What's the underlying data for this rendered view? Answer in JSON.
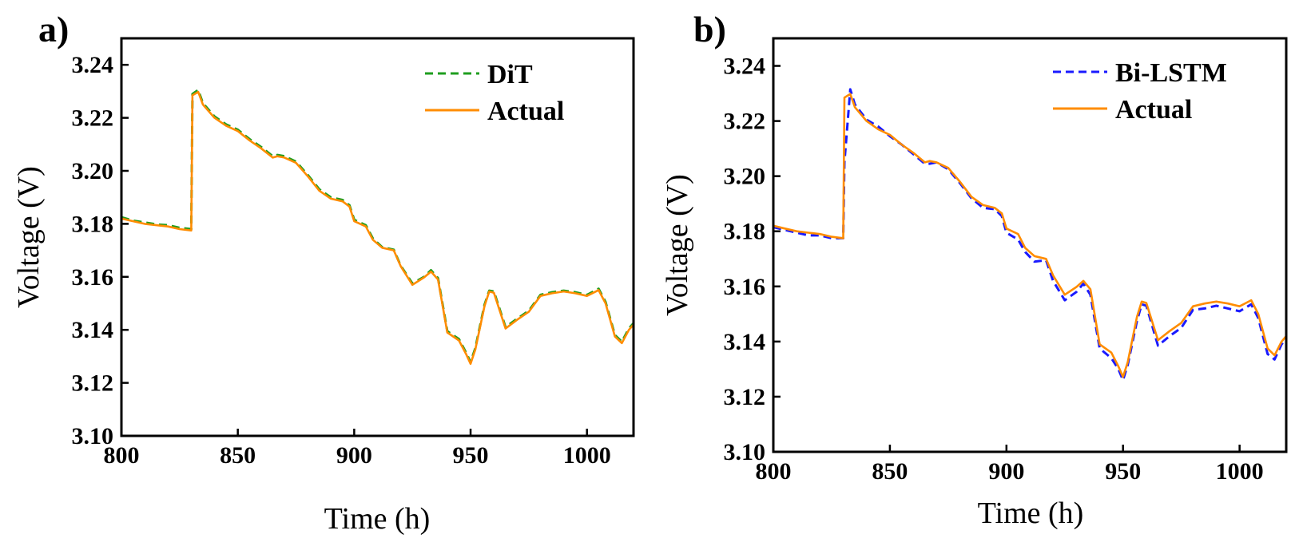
{
  "chart_data": [
    {
      "type": "line",
      "panel_label": "a)",
      "xlabel": "Time (h)",
      "ylabel": "Voltage (V)",
      "xlim": [
        800,
        1020
      ],
      "ylim": [
        3.1,
        3.25
      ],
      "xticks": [
        "800",
        "850",
        "900",
        "950",
        "1000"
      ],
      "yticks": [
        "3.10",
        "3.12",
        "3.14",
        "3.16",
        "3.18",
        "3.20",
        "3.22",
        "3.24"
      ],
      "legend_position": "top-right",
      "series": [
        {
          "name": "DiT",
          "color": "#1f9e1f",
          "style": "dashed",
          "x": [
            800,
            805,
            810,
            815,
            820,
            825,
            830,
            830.5,
            833,
            835,
            840,
            845,
            850,
            855,
            860,
            865,
            867,
            870,
            875,
            880,
            885,
            890,
            895,
            898,
            900,
            905,
            908,
            912,
            917,
            920,
            925,
            930,
            933,
            936,
            940,
            945,
            948,
            950,
            952,
            956,
            958,
            960,
            965,
            970,
            975,
            980,
            985,
            990,
            995,
            1000,
            1005,
            1008,
            1012,
            1015,
            1018,
            1020
          ],
          "y": [
            3.1825,
            3.1812,
            3.1805,
            3.1798,
            3.1795,
            3.1785,
            3.178,
            3.229,
            3.2305,
            3.2255,
            3.2205,
            3.2175,
            3.2155,
            3.212,
            3.209,
            3.2055,
            3.206,
            3.2055,
            3.2035,
            3.1985,
            3.193,
            3.19,
            3.189,
            3.187,
            3.1815,
            3.1795,
            3.1745,
            3.1712,
            3.1702,
            3.1642,
            3.1575,
            3.16,
            3.1625,
            3.1595,
            3.1395,
            3.1365,
            3.1315,
            3.1278,
            3.133,
            3.1495,
            3.1548,
            3.1545,
            3.141,
            3.1442,
            3.1472,
            3.1532,
            3.1542,
            3.1548,
            3.1542,
            3.1532,
            3.1555,
            3.1505,
            3.138,
            3.1355,
            3.1405,
            3.1425
          ]
        },
        {
          "name": "Actual",
          "color": "#ff8c00",
          "style": "solid",
          "x": [
            800,
            805,
            810,
            815,
            820,
            825,
            830,
            830.5,
            833,
            835,
            840,
            845,
            850,
            855,
            860,
            865,
            867,
            870,
            875,
            880,
            885,
            890,
            895,
            898,
            900,
            905,
            908,
            912,
            917,
            920,
            925,
            930,
            933,
            936,
            940,
            945,
            948,
            950,
            952,
            956,
            958,
            960,
            965,
            970,
            975,
            980,
            985,
            990,
            995,
            1000,
            1005,
            1008,
            1012,
            1015,
            1018,
            1020
          ],
          "y": [
            3.182,
            3.181,
            3.18,
            3.1795,
            3.179,
            3.178,
            3.1775,
            3.2285,
            3.2298,
            3.225,
            3.22,
            3.217,
            3.215,
            3.2115,
            3.2085,
            3.205,
            3.2055,
            3.205,
            3.203,
            3.198,
            3.1925,
            3.1895,
            3.1885,
            3.1865,
            3.181,
            3.179,
            3.174,
            3.171,
            3.17,
            3.164,
            3.157,
            3.1598,
            3.162,
            3.159,
            3.139,
            3.136,
            3.131,
            3.1272,
            3.1325,
            3.149,
            3.1545,
            3.154,
            3.1405,
            3.1438,
            3.1468,
            3.1528,
            3.1538,
            3.1545,
            3.1538,
            3.1528,
            3.155,
            3.15,
            3.1375,
            3.135,
            3.14,
            3.142
          ]
        }
      ]
    },
    {
      "type": "line",
      "panel_label": "b)",
      "xlabel": "Time (h)",
      "ylabel": "Voltage (V)",
      "xlim": [
        800,
        1020
      ],
      "ylim": [
        3.1,
        3.25
      ],
      "xticks": [
        "800",
        "850",
        "900",
        "950",
        "1000"
      ],
      "yticks": [
        "3.10",
        "3.12",
        "3.14",
        "3.16",
        "3.18",
        "3.20",
        "3.22",
        "3.24"
      ],
      "legend_position": "top-right",
      "series": [
        {
          "name": "Bi-LSTM",
          "color": "#1a1aff",
          "style": "dashed",
          "x": [
            800,
            805,
            810,
            815,
            820,
            825,
            830,
            830.5,
            833,
            835,
            840,
            845,
            850,
            855,
            860,
            865,
            867,
            870,
            875,
            880,
            885,
            890,
            895,
            898,
            900,
            905,
            908,
            912,
            917,
            920,
            925,
            930,
            933,
            936,
            940,
            945,
            948,
            950,
            952,
            956,
            958,
            960,
            965,
            970,
            975,
            980,
            985,
            990,
            995,
            1000,
            1005,
            1008,
            1012,
            1015,
            1018,
            1020
          ],
          "y": [
            3.1815,
            3.1805,
            3.1795,
            3.1785,
            3.1785,
            3.1775,
            3.1775,
            3.205,
            3.2315,
            3.226,
            3.2205,
            3.218,
            3.2145,
            3.2115,
            3.208,
            3.2045,
            3.2045,
            3.205,
            3.2025,
            3.1975,
            3.192,
            3.1885,
            3.188,
            3.1855,
            3.1795,
            3.177,
            3.1725,
            3.169,
            3.1695,
            3.162,
            3.155,
            3.158,
            3.161,
            3.157,
            3.1375,
            3.134,
            3.13,
            3.126,
            3.1315,
            3.1475,
            3.1535,
            3.153,
            3.1385,
            3.142,
            3.145,
            3.1515,
            3.152,
            3.153,
            3.152,
            3.151,
            3.1535,
            3.1485,
            3.1355,
            3.1335,
            3.139,
            3.141
          ]
        },
        {
          "name": "Actual",
          "color": "#ff8c00",
          "style": "solid",
          "x": [
            800,
            805,
            810,
            815,
            820,
            825,
            830,
            830.5,
            833,
            835,
            840,
            845,
            850,
            855,
            860,
            865,
            867,
            870,
            875,
            880,
            885,
            890,
            895,
            898,
            900,
            905,
            908,
            912,
            917,
            920,
            925,
            930,
            933,
            936,
            940,
            945,
            948,
            950,
            952,
            956,
            958,
            960,
            965,
            970,
            975,
            980,
            985,
            990,
            995,
            1000,
            1005,
            1008,
            1012,
            1015,
            1018,
            1020
          ],
          "y": [
            3.182,
            3.181,
            3.18,
            3.1795,
            3.179,
            3.178,
            3.1775,
            3.2285,
            3.2298,
            3.225,
            3.22,
            3.217,
            3.215,
            3.2115,
            3.2085,
            3.205,
            3.2055,
            3.205,
            3.203,
            3.198,
            3.1925,
            3.1895,
            3.1885,
            3.1865,
            3.181,
            3.179,
            3.174,
            3.171,
            3.17,
            3.164,
            3.157,
            3.1598,
            3.162,
            3.159,
            3.139,
            3.136,
            3.131,
            3.1272,
            3.1325,
            3.149,
            3.1545,
            3.154,
            3.1405,
            3.1438,
            3.1468,
            3.1528,
            3.1538,
            3.1545,
            3.1538,
            3.1528,
            3.155,
            3.15,
            3.1375,
            3.135,
            3.14,
            3.142
          ]
        }
      ]
    }
  ]
}
